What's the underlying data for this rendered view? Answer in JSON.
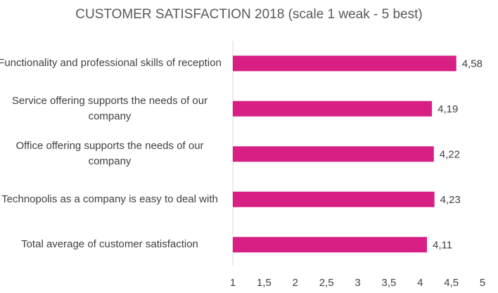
{
  "chart_data": {
    "type": "bar",
    "orientation": "horizontal",
    "title": "CUSTOMER SATISFACTION 2018 (scale 1 weak - 5 best)",
    "xlabel": "",
    "ylabel": "",
    "categories": [
      "Functionality and professional skills of reception",
      "Service offering supports the needs of our company",
      "Office offering supports the needs of our company",
      "Technopolis as a company is easy to deal with",
      "Total average of customer satisfaction"
    ],
    "values": [
      4.58,
      4.19,
      4.22,
      4.23,
      4.11
    ],
    "data_labels": [
      "4,58",
      "4,19",
      "4,22",
      "4,23",
      "4,11"
    ],
    "xlim": [
      1,
      5
    ],
    "x_ticks": [
      "1",
      "1,5",
      "2",
      "2,5",
      "3",
      "3,5",
      "4",
      "4,5",
      "5"
    ],
    "bar_color": "#D81F84",
    "grid": false,
    "legend": "none"
  }
}
